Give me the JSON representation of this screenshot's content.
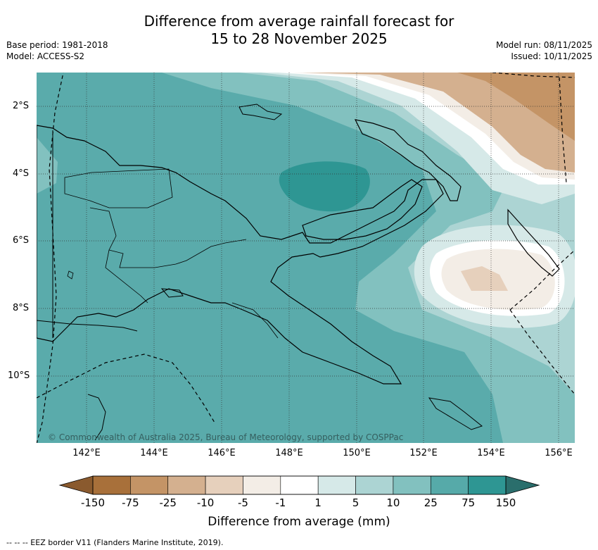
{
  "title_line1": "Difference from average rainfall forecast for",
  "title_line2": "15 to 28 November 2025",
  "left_info": {
    "base_period": "Base period: 1981-2018",
    "model": "Model: ACCESS-S2"
  },
  "right_info": {
    "model_run": "Model run: 08/11/2025",
    "issued": "Issued: 10/11/2025"
  },
  "lat_labels": [
    "2°S",
    "4°S",
    "6°S",
    "8°S",
    "10°S"
  ],
  "lon_labels": [
    "142°E",
    "144°E",
    "146°E",
    "148°E",
    "150°E",
    "152°E",
    "154°E",
    "156°E"
  ],
  "copyright": "© Commonwealth of Australia 2025, Bureau of Meteorology, supported by COSPPac",
  "colorbar": {
    "labels": [
      "-150",
      "-75",
      "-25",
      "-10",
      "-5",
      "-1",
      "1",
      "5",
      "10",
      "25",
      "75",
      "150"
    ],
    "colors": [
      "#a8703a",
      "#c49466",
      "#d4b08f",
      "#e6d0bc",
      "#f3ede6",
      "#ffffff",
      "#d6e9e8",
      "#acd4d3",
      "#82c1bf",
      "#56aaa9",
      "#2e9693"
    ],
    "low_color": "#8a5a2e",
    "high_color": "#2a6e6c",
    "title": "Difference from average (mm)"
  },
  "footnote": "--  --  -- EEZ border V11 (Flanders Marine Institute, 2019).",
  "map_colors": {
    "base": "#5aabab",
    "land_outline": "#000000"
  }
}
